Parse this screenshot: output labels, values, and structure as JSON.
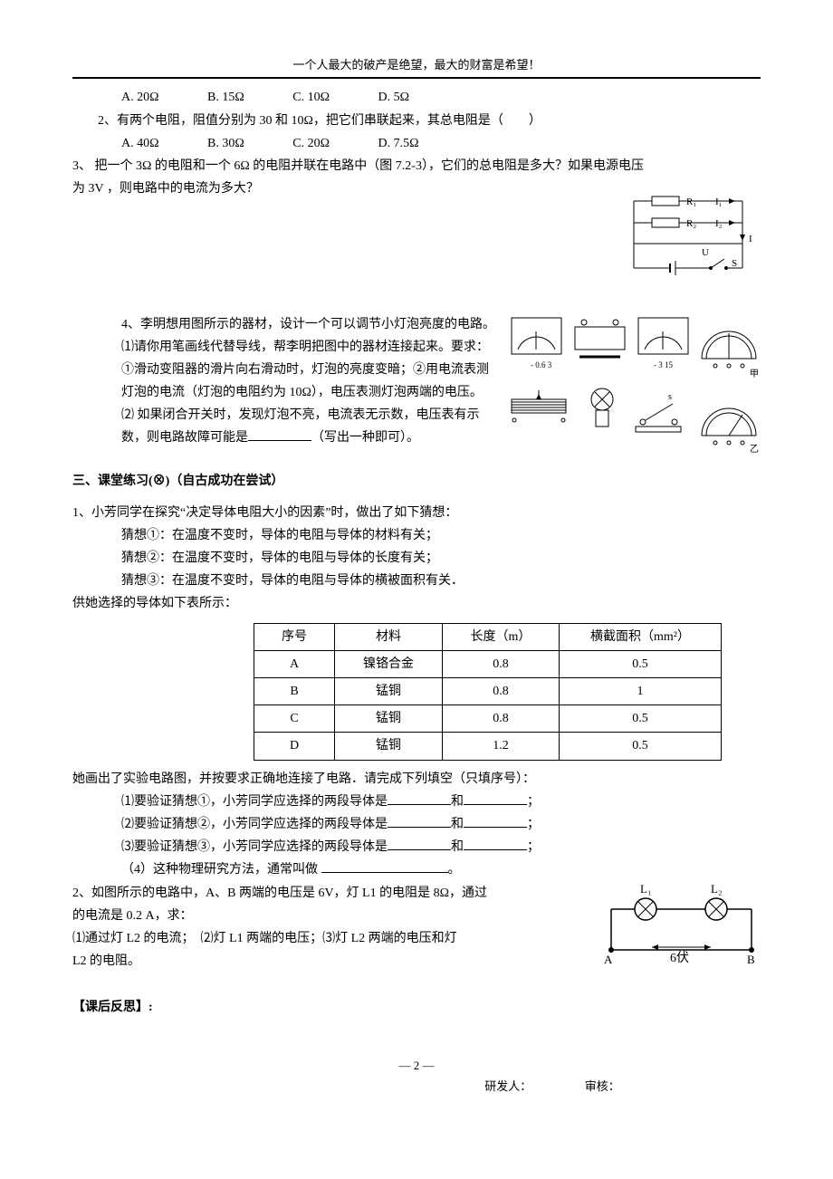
{
  "header_quote": "一个人最大的破产是绝望，最大的财富是希望！",
  "q1_prev_options": {
    "A": "A. 20Ω",
    "B": "B. 15Ω",
    "C": "C. 10Ω",
    "D": "D. 5Ω"
  },
  "q2": {
    "stem": "2、有两个电阻，阻值分别为 30 和 10Ω，把它们串联起来，其总电阻是（　　）",
    "options": {
      "A": "A. 40Ω",
      "B": "B. 30Ω",
      "C": "C. 20Ω",
      "D": "D. 7.5Ω"
    }
  },
  "q3": {
    "line1": "3、 把一个 3Ω 的电阻和一个 6Ω 的电阻并联在电路中（图 7.2-3），它们的总电阻是多大？如果电源电压",
    "line2": "为 3V ，则电路中的电流为多大？",
    "fig_labels": {
      "R1": "R₁",
      "I1": "I₁",
      "R2": "R₂",
      "I2": "I₂",
      "I": "I",
      "U": "U",
      "S": "S"
    }
  },
  "q4": {
    "line0": "4、李明想用图所示的器材，设计一个可以调节小灯泡亮度的电路。",
    "line1": "⑴请你用笔画线代替导线，帮李明把图中的器材连接起来。要求：",
    "line2": "①滑动变阻器的滑片向右滑动时，灯泡的亮度变暗；②用电流表测",
    "line3": "灯泡的电流（灯泡的电阻约为 10Ω），电压表测灯泡两端的电压。",
    "line4_pre": "⑵ 如果闭合开关时，发现灯泡不亮，电流表无示数，电压表有示",
    "line5_pre": "数，则电路故障可能是",
    "line5_post": "（写出一种即可）。"
  },
  "section3_title": "三、课堂练习(⊗)（自古成功在尝试）",
  "p1": {
    "stem": "1、小芳同学在探究“决定导体电阻大小的因素”时，做出了如下猜想：",
    "g1": "猜想①：在温度不变时，导体的电阻与导体的材料有关；",
    "g2": "猜想②：在温度不变时，导体的电阻与导体的长度有关；",
    "g3": "猜想③：在温度不变时，导体的电阻与导体的横被面积有关．",
    "table_intro": "供她选择的导体如下表所示：",
    "table": {
      "columns": [
        "序号",
        "材料",
        "长度（m）",
        "横截面积（mm²）"
      ],
      "rows": [
        [
          "A",
          "镍铬合金",
          "0.8",
          "0.5"
        ],
        [
          "B",
          "锰铜",
          "0.8",
          "1"
        ],
        [
          "C",
          "锰铜",
          "0.8",
          "0.5"
        ],
        [
          "D",
          "锰铜",
          "1.2",
          "0.5"
        ]
      ],
      "col_widths": [
        "60px",
        "90px",
        "100px",
        "150px"
      ]
    },
    "after_table": "她画出了实验电路图，并按要求正确地连接了电路．请完成下列填空（只填序号）：",
    "sub1_pre": "⑴要验证猜想①，小芳同学应选择的两段导体是",
    "mid_and": "和",
    "sub1_post": "；",
    "sub2_pre": "⑵要验证猜想②，小芳同学应选择的两段导体是",
    "sub2_post": "；",
    "sub3_pre": "⑶要验证猜想③，小芳同学应选择的两段导体是",
    "sub3_post": "；",
    "sub4_pre": "（4）这种物理研究方法，通常叫做 ",
    "sub4_post": "。"
  },
  "p2": {
    "l1": "2、如图所示的电路中，A、B 两端的电压是 6V，灯 L1 的电阻是 8Ω，通过",
    "l2": "的电流是 0.2 A，求：",
    "l3": "⑴通过灯 L2 的电流；　⑵灯 L1 两端的电压；⑶灯 L2 两端的电压和灯",
    "l4": "L2 的电阻。",
    "fig": {
      "L1": "L₁",
      "L2": "L₂",
      "A": "A",
      "B": "B",
      "six": "6伏"
    }
  },
  "reflect_title": "【课后反思】:",
  "footer_page": "— 2 —",
  "footer_sign": "研发人：　　　　　审核："
}
